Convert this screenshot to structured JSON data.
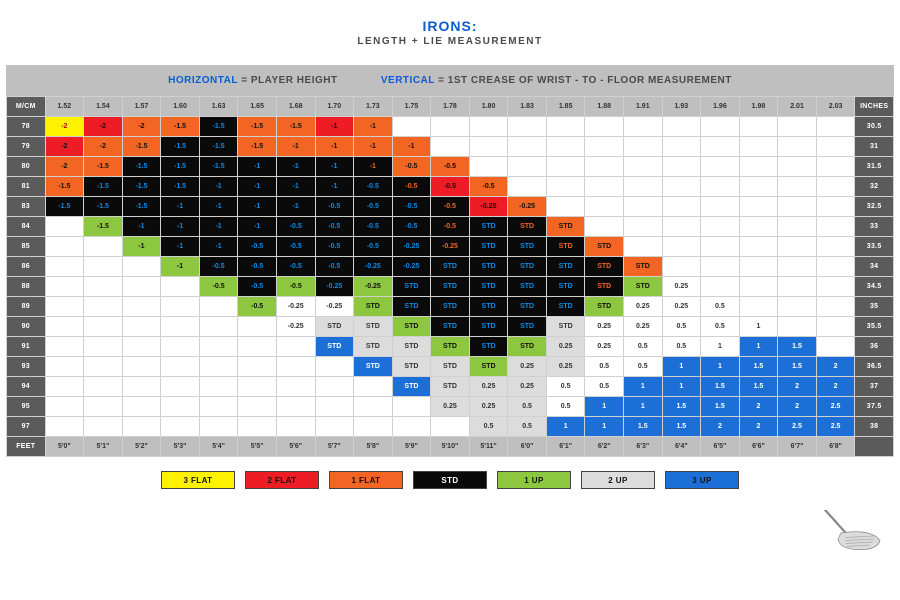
{
  "title": "IRONS:",
  "subtitle": "LENGTH + LIE MEASUREMENT",
  "title_color": "#0b5bd3",
  "axis": {
    "horizontal_label": "HORIZONTAL",
    "horizontal_desc": " = PLAYER HEIGHT",
    "vertical_label": "VERTICAL",
    "vertical_desc": " = 1ST CREASE OF WRIST - TO - FLOOR MEASUREMENT"
  },
  "corner_top_left": "M/CM",
  "corner_top_right": "INCHES",
  "corner_bottom_left": "FEET",
  "col_headers": [
    "1.52",
    "1.54",
    "1.57",
    "1.60",
    "1.63",
    "1.65",
    "1.68",
    "1.70",
    "1.73",
    "1.75",
    "1.78",
    "1.80",
    "1.83",
    "1.85",
    "1.88",
    "1.91",
    "1.93",
    "1.96",
    "1.98",
    "2.01",
    "2.03"
  ],
  "feet_row": [
    "5'0\"",
    "5'1\"",
    "5'2\"",
    "5'3\"",
    "5'4\"",
    "5'5\"",
    "5'6\"",
    "5'7\"",
    "5'8\"",
    "5'9\"",
    "5'10\"",
    "5'11\"",
    "6'0\"",
    "6'1\"",
    "6'2\"",
    "6'3\"",
    "6'4\"",
    "6'5\"",
    "6'6\"",
    "6'7\"",
    "6'8\""
  ],
  "row_headers_left": [
    "78",
    "79",
    "80",
    "81",
    "83",
    "84",
    "85",
    "86",
    "88",
    "89",
    "90",
    "91",
    "93",
    "94",
    "95",
    "97"
  ],
  "row_headers_right": [
    "30.5",
    "31",
    "31.5",
    "32",
    "32.5",
    "33",
    "33.5",
    "34",
    "34.5",
    "35",
    "35.5",
    "36",
    "36.5",
    "37",
    "37.5",
    "38"
  ],
  "colors": {
    "yellow": {
      "bg": "#fff200",
      "fg": "#c00000"
    },
    "red": {
      "bg": "#ee1c25",
      "fg": "#111111"
    },
    "orange": {
      "bg": "#f26522",
      "fg": "#111111"
    },
    "black_b": {
      "bg": "#0a0a0a",
      "fg": "#0b8be6"
    },
    "black_o": {
      "bg": "#0a0a0a",
      "fg": "#f26522"
    },
    "green": {
      "bg": "#8dc63f",
      "fg": "#111111"
    },
    "grey": {
      "bg": "#dcdcdc",
      "fg": "#333333"
    },
    "blue": {
      "bg": "#1b6fd6",
      "fg": "#ffffff"
    },
    "white": {
      "bg": "#ffffff",
      "fg": "#333333"
    },
    "empty": {
      "bg": "#ffffff",
      "fg": "#ffffff"
    }
  },
  "grid": [
    [
      [
        "-2",
        "yellow"
      ],
      [
        "-2",
        "red"
      ],
      [
        "-2",
        "orange"
      ],
      [
        "-1.5",
        "orange"
      ],
      [
        "-1.5",
        "black_b"
      ],
      [
        "-1.5",
        "orange"
      ],
      [
        "-1.5",
        "orange"
      ],
      [
        "-1",
        "red"
      ],
      [
        "-1",
        "orange"
      ],
      [
        "",
        "empty"
      ],
      [
        "",
        "empty"
      ],
      [
        "",
        "empty"
      ],
      [
        "",
        "empty"
      ],
      [
        "",
        "empty"
      ],
      [
        "",
        "empty"
      ],
      [
        "",
        "empty"
      ],
      [
        "",
        "empty"
      ],
      [
        "",
        "empty"
      ],
      [
        "",
        "empty"
      ],
      [
        "",
        "empty"
      ],
      [
        "",
        "empty"
      ]
    ],
    [
      [
        "-2",
        "red"
      ],
      [
        "-2",
        "orange"
      ],
      [
        "-1.5",
        "orange"
      ],
      [
        "-1.5",
        "black_b"
      ],
      [
        "-1.5",
        "black_b"
      ],
      [
        "-1.5",
        "orange"
      ],
      [
        "-1",
        "orange"
      ],
      [
        "-1",
        "orange"
      ],
      [
        "-1",
        "orange"
      ],
      [
        "-1",
        "orange"
      ],
      [
        "",
        "empty"
      ],
      [
        "",
        "empty"
      ],
      [
        "",
        "empty"
      ],
      [
        "",
        "empty"
      ],
      [
        "",
        "empty"
      ],
      [
        "",
        "empty"
      ],
      [
        "",
        "empty"
      ],
      [
        "",
        "empty"
      ],
      [
        "",
        "empty"
      ],
      [
        "",
        "empty"
      ],
      [
        "",
        "empty"
      ]
    ],
    [
      [
        "-2",
        "orange"
      ],
      [
        "-1.5",
        "orange"
      ],
      [
        "-1.5",
        "black_b"
      ],
      [
        "-1.5",
        "black_b"
      ],
      [
        "-1.5",
        "black_b"
      ],
      [
        "-1",
        "black_b"
      ],
      [
        "-1",
        "black_b"
      ],
      [
        "-1",
        "black_b"
      ],
      [
        "-1",
        "black_o"
      ],
      [
        "-0.5",
        "orange"
      ],
      [
        "-0.5",
        "orange"
      ],
      [
        "",
        "empty"
      ],
      [
        "",
        "empty"
      ],
      [
        "",
        "empty"
      ],
      [
        "",
        "empty"
      ],
      [
        "",
        "empty"
      ],
      [
        "",
        "empty"
      ],
      [
        "",
        "empty"
      ],
      [
        "",
        "empty"
      ],
      [
        "",
        "empty"
      ],
      [
        "",
        "empty"
      ]
    ],
    [
      [
        "-1.5",
        "orange"
      ],
      [
        "-1.5",
        "black_b"
      ],
      [
        "-1.5",
        "black_b"
      ],
      [
        "-1.5",
        "black_b"
      ],
      [
        "-1",
        "black_b"
      ],
      [
        "-1",
        "black_b"
      ],
      [
        "-1",
        "black_b"
      ],
      [
        "-1",
        "black_b"
      ],
      [
        "-0.5",
        "black_b"
      ],
      [
        "-0.5",
        "black_o"
      ],
      [
        "-0.5",
        "red"
      ],
      [
        "-0.5",
        "orange"
      ],
      [
        "",
        "empty"
      ],
      [
        "",
        "empty"
      ],
      [
        "",
        "empty"
      ],
      [
        "",
        "empty"
      ],
      [
        "",
        "empty"
      ],
      [
        "",
        "empty"
      ],
      [
        "",
        "empty"
      ],
      [
        "",
        "empty"
      ],
      [
        "",
        "empty"
      ]
    ],
    [
      [
        "-1.5",
        "black_b"
      ],
      [
        "-1.5",
        "black_b"
      ],
      [
        "-1.5",
        "black_b"
      ],
      [
        "-1",
        "black_b"
      ],
      [
        "-1",
        "black_b"
      ],
      [
        "-1",
        "black_b"
      ],
      [
        "-1",
        "black_b"
      ],
      [
        "-0.5",
        "black_b"
      ],
      [
        "-0.5",
        "black_b"
      ],
      [
        "-0.5",
        "black_b"
      ],
      [
        "-0.5",
        "black_o"
      ],
      [
        "-0.25",
        "red"
      ],
      [
        "-0.25",
        "orange"
      ],
      [
        "",
        "empty"
      ],
      [
        "",
        "empty"
      ],
      [
        "",
        "empty"
      ],
      [
        "",
        "empty"
      ],
      [
        "",
        "empty"
      ],
      [
        "",
        "empty"
      ],
      [
        "",
        "empty"
      ],
      [
        "",
        "empty"
      ]
    ],
    [
      [
        "",
        "empty"
      ],
      [
        "-1.5",
        "green"
      ],
      [
        "-1",
        "black_b"
      ],
      [
        "-1",
        "black_b"
      ],
      [
        "-1",
        "black_b"
      ],
      [
        "-1",
        "black_b"
      ],
      [
        "-0.5",
        "black_b"
      ],
      [
        "-0.5",
        "black_b"
      ],
      [
        "-0.5",
        "black_b"
      ],
      [
        "-0.5",
        "black_b"
      ],
      [
        "-0.5",
        "black_o"
      ],
      [
        "STD",
        "black_b"
      ],
      [
        "STD",
        "black_o"
      ],
      [
        "STD",
        "orange"
      ],
      [
        "",
        "empty"
      ],
      [
        "",
        "empty"
      ],
      [
        "",
        "empty"
      ],
      [
        "",
        "empty"
      ],
      [
        "",
        "empty"
      ],
      [
        "",
        "empty"
      ],
      [
        "",
        "empty"
      ]
    ],
    [
      [
        "",
        "empty"
      ],
      [
        "",
        "empty"
      ],
      [
        "-1",
        "green"
      ],
      [
        "-1",
        "black_b"
      ],
      [
        "-1",
        "black_b"
      ],
      [
        "-0.5",
        "black_b"
      ],
      [
        "-0.5",
        "black_b"
      ],
      [
        "-0.5",
        "black_b"
      ],
      [
        "-0.5",
        "black_b"
      ],
      [
        "-0.25",
        "black_b"
      ],
      [
        "-0.25",
        "black_o"
      ],
      [
        "STD",
        "black_b"
      ],
      [
        "STD",
        "black_b"
      ],
      [
        "STD",
        "black_o"
      ],
      [
        "STD",
        "orange"
      ],
      [
        "",
        "empty"
      ],
      [
        "",
        "empty"
      ],
      [
        "",
        "empty"
      ],
      [
        "",
        "empty"
      ],
      [
        "",
        "empty"
      ],
      [
        "",
        "empty"
      ]
    ],
    [
      [
        "",
        "empty"
      ],
      [
        "",
        "empty"
      ],
      [
        "",
        "empty"
      ],
      [
        "-1",
        "green"
      ],
      [
        "-0.5",
        "black_b"
      ],
      [
        "-0.5",
        "black_b"
      ],
      [
        "-0.5",
        "black_b"
      ],
      [
        "-0.5",
        "black_b"
      ],
      [
        "-0.25",
        "black_b"
      ],
      [
        "-0.25",
        "black_b"
      ],
      [
        "STD",
        "black_b"
      ],
      [
        "STD",
        "black_b"
      ],
      [
        "STD",
        "black_b"
      ],
      [
        "STD",
        "black_b"
      ],
      [
        "STD",
        "black_o"
      ],
      [
        "STD",
        "orange"
      ],
      [
        "",
        "empty"
      ],
      [
        "",
        "empty"
      ],
      [
        "",
        "empty"
      ],
      [
        "",
        "empty"
      ],
      [
        "",
        "empty"
      ]
    ],
    [
      [
        "",
        "empty"
      ],
      [
        "",
        "empty"
      ],
      [
        "",
        "empty"
      ],
      [
        "",
        "empty"
      ],
      [
        "-0.5",
        "green"
      ],
      [
        "-0.5",
        "black_b"
      ],
      [
        "-0.5",
        "green"
      ],
      [
        "-0.25",
        "black_b"
      ],
      [
        "-0.25",
        "green"
      ],
      [
        "STD",
        "black_b"
      ],
      [
        "STD",
        "black_b"
      ],
      [
        "STD",
        "black_b"
      ],
      [
        "STD",
        "black_b"
      ],
      [
        "STD",
        "black_b"
      ],
      [
        "STD",
        "black_o"
      ],
      [
        "STD",
        "green"
      ],
      [
        "0.25",
        "white"
      ],
      [
        "",
        "empty"
      ],
      [
        "",
        "empty"
      ],
      [
        "",
        "empty"
      ],
      [
        "",
        "empty"
      ]
    ],
    [
      [
        "",
        "empty"
      ],
      [
        "",
        "empty"
      ],
      [
        "",
        "empty"
      ],
      [
        "",
        "empty"
      ],
      [
        "",
        "empty"
      ],
      [
        "-0.5",
        "green"
      ],
      [
        "-0.25",
        "white"
      ],
      [
        "-0.25",
        "white"
      ],
      [
        "STD",
        "green"
      ],
      [
        "STD",
        "black_b"
      ],
      [
        "STD",
        "black_b"
      ],
      [
        "STD",
        "black_b"
      ],
      [
        "STD",
        "black_b"
      ],
      [
        "STD",
        "black_b"
      ],
      [
        "STD",
        "green"
      ],
      [
        "0.25",
        "white"
      ],
      [
        "0.25",
        "white"
      ],
      [
        "0.5",
        "white"
      ],
      [
        "",
        "empty"
      ],
      [
        "",
        "empty"
      ],
      [
        "",
        "empty"
      ]
    ],
    [
      [
        "",
        "empty"
      ],
      [
        "",
        "empty"
      ],
      [
        "",
        "empty"
      ],
      [
        "",
        "empty"
      ],
      [
        "",
        "empty"
      ],
      [
        "",
        "empty"
      ],
      [
        "-0.25",
        "white"
      ],
      [
        "STD",
        "grey"
      ],
      [
        "STD",
        "grey"
      ],
      [
        "STD",
        "green"
      ],
      [
        "STD",
        "black_b"
      ],
      [
        "STD",
        "black_b"
      ],
      [
        "STD",
        "black_b"
      ],
      [
        "STD",
        "grey"
      ],
      [
        "0.25",
        "white"
      ],
      [
        "0.25",
        "white"
      ],
      [
        "0.5",
        "white"
      ],
      [
        "0.5",
        "white"
      ],
      [
        "1",
        "white"
      ],
      [
        "",
        "empty"
      ],
      [
        "",
        "empty"
      ]
    ],
    [
      [
        "",
        "empty"
      ],
      [
        "",
        "empty"
      ],
      [
        "",
        "empty"
      ],
      [
        "",
        "empty"
      ],
      [
        "",
        "empty"
      ],
      [
        "",
        "empty"
      ],
      [
        "",
        "empty"
      ],
      [
        "STD",
        "blue"
      ],
      [
        "STD",
        "grey"
      ],
      [
        "STD",
        "grey"
      ],
      [
        "STD",
        "green"
      ],
      [
        "STD",
        "black_b"
      ],
      [
        "STD",
        "green"
      ],
      [
        "0.25",
        "grey"
      ],
      [
        "0.25",
        "white"
      ],
      [
        "0.5",
        "white"
      ],
      [
        "0.5",
        "white"
      ],
      [
        "1",
        "white"
      ],
      [
        "1",
        "blue"
      ],
      [
        "1.5",
        "blue"
      ],
      [
        "",
        "empty"
      ]
    ],
    [
      [
        "",
        "empty"
      ],
      [
        "",
        "empty"
      ],
      [
        "",
        "empty"
      ],
      [
        "",
        "empty"
      ],
      [
        "",
        "empty"
      ],
      [
        "",
        "empty"
      ],
      [
        "",
        "empty"
      ],
      [
        "",
        "empty"
      ],
      [
        "STD",
        "blue"
      ],
      [
        "STD",
        "grey"
      ],
      [
        "STD",
        "grey"
      ],
      [
        "STD",
        "green"
      ],
      [
        "0.25",
        "grey"
      ],
      [
        "0.25",
        "grey"
      ],
      [
        "0.5",
        "white"
      ],
      [
        "0.5",
        "white"
      ],
      [
        "1",
        "blue"
      ],
      [
        "1",
        "blue"
      ],
      [
        "1.5",
        "blue"
      ],
      [
        "1.5",
        "blue"
      ],
      [
        "2",
        "blue"
      ]
    ],
    [
      [
        "",
        "empty"
      ],
      [
        "",
        "empty"
      ],
      [
        "",
        "empty"
      ],
      [
        "",
        "empty"
      ],
      [
        "",
        "empty"
      ],
      [
        "",
        "empty"
      ],
      [
        "",
        "empty"
      ],
      [
        "",
        "empty"
      ],
      [
        "",
        "empty"
      ],
      [
        "STD",
        "blue"
      ],
      [
        "STD",
        "grey"
      ],
      [
        "0.25",
        "grey"
      ],
      [
        "0.25",
        "grey"
      ],
      [
        "0.5",
        "white"
      ],
      [
        "0.5",
        "white"
      ],
      [
        "1",
        "blue"
      ],
      [
        "1",
        "blue"
      ],
      [
        "1.5",
        "blue"
      ],
      [
        "1.5",
        "blue"
      ],
      [
        "2",
        "blue"
      ],
      [
        "2",
        "blue"
      ]
    ],
    [
      [
        "",
        "empty"
      ],
      [
        "",
        "empty"
      ],
      [
        "",
        "empty"
      ],
      [
        "",
        "empty"
      ],
      [
        "",
        "empty"
      ],
      [
        "",
        "empty"
      ],
      [
        "",
        "empty"
      ],
      [
        "",
        "empty"
      ],
      [
        "",
        "empty"
      ],
      [
        "",
        "empty"
      ],
      [
        "0.25",
        "grey"
      ],
      [
        "0.25",
        "grey"
      ],
      [
        "0.5",
        "grey"
      ],
      [
        "0.5",
        "white"
      ],
      [
        "1",
        "blue"
      ],
      [
        "1",
        "blue"
      ],
      [
        "1.5",
        "blue"
      ],
      [
        "1.5",
        "blue"
      ],
      [
        "2",
        "blue"
      ],
      [
        "2",
        "blue"
      ],
      [
        "2.5",
        "blue"
      ]
    ],
    [
      [
        "",
        "empty"
      ],
      [
        "",
        "empty"
      ],
      [
        "",
        "empty"
      ],
      [
        "",
        "empty"
      ],
      [
        "",
        "empty"
      ],
      [
        "",
        "empty"
      ],
      [
        "",
        "empty"
      ],
      [
        "",
        "empty"
      ],
      [
        "",
        "empty"
      ],
      [
        "",
        "empty"
      ],
      [
        "",
        "empty"
      ],
      [
        "0.5",
        "grey"
      ],
      [
        "0.5",
        "grey"
      ],
      [
        "1",
        "blue"
      ],
      [
        "1",
        "blue"
      ],
      [
        "1.5",
        "blue"
      ],
      [
        "1.5",
        "blue"
      ],
      [
        "2",
        "blue"
      ],
      [
        "2",
        "blue"
      ],
      [
        "2.5",
        "blue"
      ],
      [
        "2.5",
        "blue"
      ]
    ]
  ],
  "legend": [
    {
      "label": "3 FLAT",
      "color_key": "yellow"
    },
    {
      "label": "2 FLAT",
      "color_key": "red"
    },
    {
      "label": "1 FLAT",
      "color_key": "orange"
    },
    {
      "label": "STD",
      "color_key": "black_b"
    },
    {
      "label": "1 UP",
      "color_key": "green"
    },
    {
      "label": "2 UP",
      "color_key": "grey"
    },
    {
      "label": "3 UP",
      "color_key": "blue"
    }
  ],
  "style": {
    "header_bg": "#bfbfbf",
    "dark_bg": "#5b5b5b",
    "border": "#d0d0d0",
    "legend_text_override": {
      "black_b": "#ffffff"
    }
  }
}
